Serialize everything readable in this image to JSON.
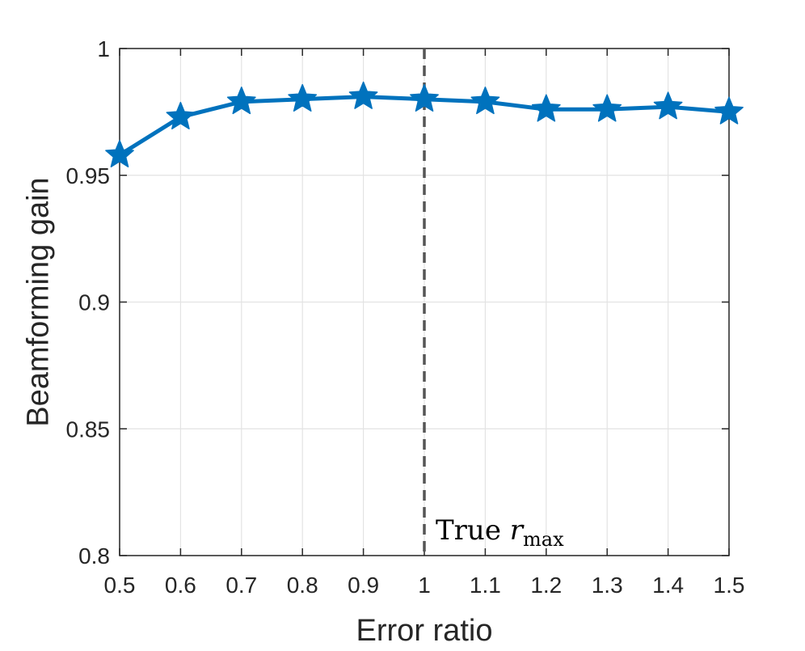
{
  "chart_data": {
    "type": "line",
    "title": "",
    "xlabel": "Error ratio",
    "ylabel": "Beamforming gain",
    "xlim": [
      0.5,
      1.5
    ],
    "ylim": [
      0.8,
      1.0
    ],
    "x_ticks": [
      "0.5",
      "0.6",
      "0.7",
      "0.8",
      "0.9",
      "1",
      "1.1",
      "1.2",
      "1.3",
      "1.4",
      "1.5"
    ],
    "y_ticks": [
      "0.8",
      "0.85",
      "0.9",
      "0.95",
      "1"
    ],
    "grid": true,
    "series": [
      {
        "marker": "star",
        "color": "#0072BD",
        "x": [
          0.5,
          0.6,
          0.7,
          0.8,
          0.9,
          1.0,
          1.1,
          1.2,
          1.3,
          1.4,
          1.5
        ],
        "y": [
          0.958,
          0.973,
          0.979,
          0.98,
          0.981,
          0.98,
          0.979,
          0.976,
          0.976,
          0.977,
          0.975
        ]
      }
    ],
    "reference_line": {
      "x": 1.0,
      "style": "dashed",
      "color": "#555555"
    },
    "annotation": {
      "text_main": "True ",
      "symbol": "r",
      "subscript": "max",
      "x": 1.0,
      "y": 0.8
    }
  }
}
